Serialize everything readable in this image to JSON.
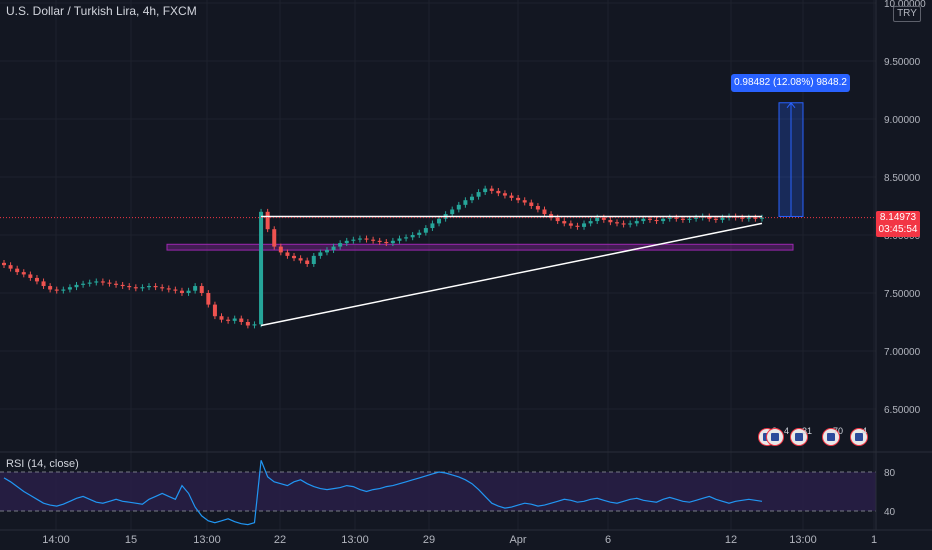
{
  "header": {
    "title": "U.S. Dollar / Turkish Lira, 4h, FXCM",
    "currency": "TRY"
  },
  "price_badge": {
    "price": "8.14973",
    "countdown": "03:45:54"
  },
  "measure_label": "0.98482 (12.08%) 9848.2",
  "rsi": {
    "label": "RSI (14, close)",
    "levels": [
      80,
      40
    ]
  },
  "events": [
    {
      "icon": "us-flag-icon",
      "count": "8"
    },
    {
      "icon": "us-flag-icon",
      "count": "4"
    },
    {
      "icon": "us-flag-icon",
      "count": "31"
    },
    {
      "icon": "us-flag-icon",
      "count": "70"
    },
    {
      "icon": "us-flag-icon",
      "count": "4"
    }
  ],
  "colors": {
    "background": "#131722",
    "up": "#26a69a",
    "down": "#ef5350",
    "rsi_line": "#2196f3",
    "rsi_band": "#2a1f4a",
    "zone": "#9c27b0",
    "measure": "#2962ff",
    "price_line": "#f23645"
  },
  "chart_data": {
    "type": "candlestick",
    "title": "U.S. Dollar / Turkish Lira, 4h, FXCM",
    "y_axis": {
      "ticks": [
        "10.00000",
        "9.50000",
        "9.00000",
        "8.50000",
        "8.00000",
        "7.50000",
        "7.00000",
        "6.50000"
      ],
      "ylim": [
        6.3,
        10.0
      ]
    },
    "x_axis": {
      "ticks": [
        "14:00",
        "15",
        "13:00",
        "22",
        "13:00",
        "29",
        "Apr",
        "6",
        "12",
        "13:00",
        "1"
      ]
    },
    "last_price": 8.14973,
    "close": [
      7.74,
      7.71,
      7.68,
      7.66,
      7.63,
      7.6,
      7.56,
      7.53,
      7.52,
      7.53,
      7.55,
      7.57,
      7.58,
      7.59,
      7.6,
      7.59,
      7.58,
      7.57,
      7.56,
      7.55,
      7.54,
      7.55,
      7.56,
      7.55,
      7.54,
      7.53,
      7.52,
      7.5,
      7.52,
      7.56,
      7.5,
      7.4,
      7.3,
      7.27,
      7.26,
      7.28,
      7.25,
      7.22,
      7.23,
      8.2,
      8.05,
      7.9,
      7.85,
      7.82,
      7.8,
      7.78,
      7.75,
      7.82,
      7.85,
      7.87,
      7.9,
      7.93,
      7.95,
      7.96,
      7.97,
      7.96,
      7.95,
      7.94,
      7.93,
      7.95,
      7.97,
      7.98,
      8.0,
      8.02,
      8.06,
      8.1,
      8.14,
      8.18,
      8.22,
      8.26,
      8.3,
      8.33,
      8.37,
      8.4,
      8.38,
      8.36,
      8.34,
      8.32,
      8.3,
      8.28,
      8.25,
      8.22,
      8.18,
      8.15,
      8.12,
      8.1,
      8.08,
      8.07,
      8.1,
      8.12,
      8.15,
      8.13,
      8.11,
      8.1,
      8.09,
      8.1,
      8.12,
      8.14,
      8.13,
      8.12,
      8.14,
      8.15,
      8.14,
      8.13,
      8.14,
      8.15,
      8.16,
      8.14,
      8.13,
      8.15,
      8.16,
      8.15,
      8.14,
      8.15,
      8.14,
      8.15
    ],
    "resistance_level": 8.16,
    "support_zone": [
      7.87,
      7.92
    ],
    "trendline": {
      "from_price": 7.22,
      "to_price": 8.1
    },
    "measure": {
      "from": 8.16,
      "to": 9.14,
      "change": "0.98482",
      "percent": "12.08%",
      "ticks": "9848.2"
    },
    "rsi_values": [
      74,
      70,
      65,
      60,
      56,
      52,
      48,
      46,
      45,
      47,
      50,
      53,
      55,
      52,
      49,
      48,
      50,
      52,
      50,
      49,
      48,
      47,
      52,
      55,
      58,
      55,
      52,
      66,
      58,
      44,
      35,
      30,
      28,
      30,
      32,
      29,
      27,
      26,
      28,
      92,
      75,
      70,
      68,
      66,
      70,
      72,
      68,
      65,
      63,
      62,
      63,
      64,
      66,
      65,
      62,
      60,
      62,
      63,
      65,
      66,
      68,
      70,
      72,
      74,
      76,
      78,
      80,
      79,
      77,
      75,
      72,
      68,
      62,
      55,
      48,
      45,
      43,
      44,
      46,
      48,
      47,
      45,
      46,
      48,
      50,
      52,
      51,
      49,
      50,
      52,
      53,
      51,
      49,
      48,
      50,
      52,
      53,
      51,
      50,
      49,
      52,
      54,
      52,
      50,
      49,
      51,
      53,
      55,
      52,
      50,
      48,
      50,
      51,
      52,
      51,
      50
    ]
  }
}
